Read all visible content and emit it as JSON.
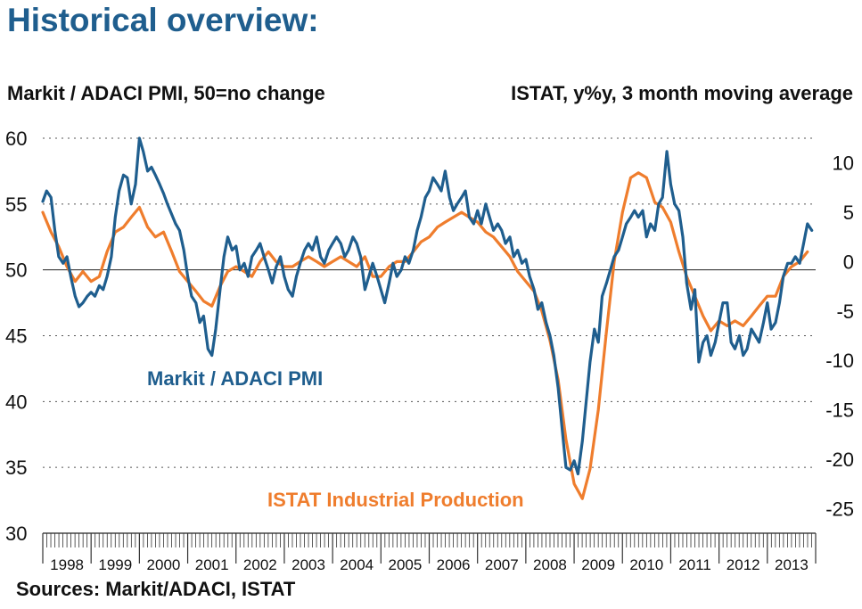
{
  "header": {
    "title": "Historical overview:",
    "left_axis_title": "Markit / ADACI PMI, 50=no change",
    "right_axis_title": "ISTAT, y%y, 3 month moving average",
    "source": "Sources: Markit/ADACI, ISTAT"
  },
  "colors": {
    "pmi": "#1f5e8e",
    "istat": "#ef7d2d"
  },
  "chart_data": {
    "type": "line",
    "title": "Historical overview:",
    "y_left": {
      "label": "Markit / ADACI PMI, 50=no change",
      "lim": [
        30,
        60
      ],
      "ticks": [
        "30",
        "35",
        "40",
        "45",
        "50",
        "55",
        "60"
      ],
      "ticks_num": [
        30,
        35,
        40,
        45,
        50,
        55,
        60
      ]
    },
    "y_right": {
      "label": "ISTAT, y%y, 3 month moving average",
      "lim": [
        -27.5,
        12.5
      ],
      "ticks": [
        "-25",
        "-20",
        "-15",
        "-10",
        "-5",
        "0",
        "5",
        "10"
      ],
      "ticks_num": [
        -25,
        -20,
        -15,
        -10,
        -5,
        0,
        5,
        10
      ]
    },
    "x_years": [
      "1998",
      "1999",
      "2000",
      "2001",
      "2002",
      "2003",
      "2004",
      "2005",
      "2006",
      "2007",
      "2008",
      "2009",
      "2010",
      "2011",
      "2012",
      "2013"
    ],
    "x_range": [
      1998.0,
      2014.0
    ],
    "grid": "dotted horizontal",
    "series": [
      {
        "name": "Markit / ADACI PMI",
        "axis": "left",
        "x": [
          1998.0,
          1998.08,
          1998.17,
          1998.25,
          1998.33,
          1998.42,
          1998.5,
          1998.58,
          1998.67,
          1998.75,
          1998.83,
          1998.92,
          1999.0,
          1999.08,
          1999.17,
          1999.25,
          1999.33,
          1999.42,
          1999.5,
          1999.58,
          1999.67,
          1999.75,
          1999.83,
          1999.92,
          2000.0,
          2000.08,
          2000.17,
          2000.25,
          2000.33,
          2000.42,
          2000.5,
          2000.58,
          2000.67,
          2000.75,
          2000.83,
          2000.92,
          2001.0,
          2001.08,
          2001.17,
          2001.25,
          2001.33,
          2001.42,
          2001.5,
          2001.58,
          2001.67,
          2001.75,
          2001.83,
          2001.92,
          2002.0,
          2002.08,
          2002.17,
          2002.25,
          2002.33,
          2002.42,
          2002.5,
          2002.58,
          2002.67,
          2002.75,
          2002.83,
          2002.92,
          2003.0,
          2003.08,
          2003.17,
          2003.25,
          2003.33,
          2003.42,
          2003.5,
          2003.58,
          2003.67,
          2003.75,
          2003.83,
          2003.92,
          2004.0,
          2004.08,
          2004.17,
          2004.25,
          2004.33,
          2004.42,
          2004.5,
          2004.58,
          2004.67,
          2004.75,
          2004.83,
          2004.92,
          2005.0,
          2005.08,
          2005.17,
          2005.25,
          2005.33,
          2005.42,
          2005.5,
          2005.58,
          2005.67,
          2005.75,
          2005.83,
          2005.92,
          2006.0,
          2006.08,
          2006.17,
          2006.25,
          2006.33,
          2006.42,
          2006.5,
          2006.58,
          2006.67,
          2006.75,
          2006.83,
          2006.92,
          2007.0,
          2007.08,
          2007.17,
          2007.25,
          2007.33,
          2007.42,
          2007.5,
          2007.58,
          2007.67,
          2007.75,
          2007.83,
          2007.92,
          2008.0,
          2008.08,
          2008.17,
          2008.25,
          2008.33,
          2008.42,
          2008.5,
          2008.58,
          2008.67,
          2008.75,
          2008.83,
          2008.92,
          2009.0,
          2009.08,
          2009.17,
          2009.25,
          2009.33,
          2009.42,
          2009.5,
          2009.58,
          2009.67,
          2009.75,
          2009.83,
          2009.92,
          2010.0,
          2010.08,
          2010.17,
          2010.25,
          2010.33,
          2010.42,
          2010.5,
          2010.58,
          2010.67,
          2010.75,
          2010.83,
          2010.92,
          2011.0,
          2011.08,
          2011.17,
          2011.25,
          2011.33,
          2011.42,
          2011.5,
          2011.58,
          2011.67,
          2011.75,
          2011.83,
          2011.92,
          2012.0,
          2012.08,
          2012.17,
          2012.25,
          2012.33,
          2012.42,
          2012.5,
          2012.58,
          2012.67,
          2012.75,
          2012.83,
          2012.92,
          2013.0,
          2013.08,
          2013.17,
          2013.25,
          2013.33,
          2013.42,
          2013.5,
          2013.58,
          2013.67,
          2013.75,
          2013.83,
          2013.92
        ],
        "values": [
          55.2,
          56.0,
          55.5,
          53.0,
          51.0,
          50.5,
          51.0,
          49.5,
          48.0,
          47.2,
          47.5,
          48.0,
          48.3,
          48.0,
          48.8,
          48.5,
          49.5,
          51.0,
          54.0,
          56.0,
          57.2,
          57.0,
          55.0,
          56.5,
          60.0,
          59.0,
          57.5,
          57.8,
          57.2,
          56.5,
          55.8,
          55.0,
          54.2,
          53.5,
          53.0,
          51.5,
          49.5,
          48.0,
          47.5,
          46.0,
          46.5,
          44.0,
          43.5,
          45.5,
          48.5,
          51.0,
          52.5,
          51.5,
          51.8,
          50.0,
          50.5,
          49.5,
          51.0,
          51.5,
          52.0,
          51.0,
          50.0,
          49.0,
          50.2,
          51.0,
          49.5,
          48.5,
          48.0,
          49.5,
          50.5,
          51.5,
          52.0,
          51.5,
          52.5,
          51.0,
          50.5,
          51.5,
          52.0,
          52.5,
          52.0,
          51.0,
          51.5,
          52.5,
          52.0,
          51.0,
          48.5,
          49.5,
          50.5,
          49.5,
          48.5,
          47.5,
          49.0,
          50.5,
          49.5,
          50.0,
          51.0,
          50.5,
          51.5,
          53.0,
          54.0,
          55.5,
          56.0,
          57.0,
          56.5,
          56.0,
          57.5,
          55.5,
          54.5,
          55.0,
          55.5,
          56.0,
          54.0,
          53.5,
          54.5,
          53.5,
          55.0,
          54.0,
          53.0,
          53.5,
          53.0,
          52.0,
          52.5,
          51.0,
          51.5,
          50.5,
          50.8,
          49.5,
          48.5,
          47.0,
          47.5,
          46.0,
          45.0,
          43.5,
          41.0,
          38.0,
          35.0,
          34.8,
          35.5,
          34.5,
          37.0,
          40.0,
          43.0,
          45.5,
          44.5,
          48.0,
          49.0,
          50.0,
          51.0,
          51.5,
          52.5,
          53.5,
          54.0,
          54.5,
          54.0,
          54.5,
          52.5,
          53.5,
          53.0,
          55.0,
          55.5,
          59.0,
          56.5,
          55.0,
          54.5,
          52.5,
          49.0,
          47.0,
          48.5,
          43.0,
          44.5,
          45.0,
          43.5,
          44.5,
          46.0,
          47.5,
          47.5,
          44.5,
          44.0,
          45.0,
          43.5,
          44.0,
          45.5,
          45.0,
          44.5,
          46.0,
          47.5,
          45.5,
          46.0,
          47.5,
          49.5,
          50.5,
          50.5,
          51.0,
          50.5,
          52.0,
          53.5,
          53.0
        ]
      },
      {
        "name": "ISTAT Industrial Production",
        "axis": "right",
        "x": [
          1998.0,
          1998.17,
          1998.33,
          1998.5,
          1998.67,
          1998.83,
          1999.0,
          1999.17,
          1999.33,
          1999.5,
          1999.67,
          1999.83,
          2000.0,
          2000.17,
          2000.33,
          2000.5,
          2000.67,
          2000.83,
          2001.0,
          2001.17,
          2001.33,
          2001.5,
          2001.67,
          2001.83,
          2002.0,
          2002.17,
          2002.33,
          2002.5,
          2002.67,
          2002.83,
          2003.0,
          2003.17,
          2003.33,
          2003.5,
          2003.67,
          2003.83,
          2004.0,
          2004.17,
          2004.33,
          2004.5,
          2004.67,
          2004.83,
          2005.0,
          2005.17,
          2005.33,
          2005.5,
          2005.67,
          2005.83,
          2006.0,
          2006.17,
          2006.33,
          2006.5,
          2006.67,
          2006.83,
          2007.0,
          2007.17,
          2007.33,
          2007.5,
          2007.67,
          2007.83,
          2008.0,
          2008.17,
          2008.33,
          2008.5,
          2008.67,
          2008.83,
          2009.0,
          2009.17,
          2009.33,
          2009.5,
          2009.67,
          2009.83,
          2010.0,
          2010.17,
          2010.33,
          2010.5,
          2010.67,
          2010.83,
          2011.0,
          2011.17,
          2011.33,
          2011.5,
          2011.67,
          2011.83,
          2012.0,
          2012.17,
          2012.33,
          2012.5,
          2012.67,
          2012.83,
          2013.0,
          2013.17,
          2013.33,
          2013.5,
          2013.67,
          2013.83
        ],
        "values": [
          5.0,
          3.0,
          1.5,
          -0.5,
          -2.0,
          -1.0,
          -2.0,
          -1.5,
          1.0,
          3.0,
          3.5,
          4.5,
          5.5,
          3.5,
          2.5,
          3.0,
          1.0,
          -1.0,
          -2.0,
          -3.0,
          -4.0,
          -4.5,
          -2.5,
          -1.0,
          -0.5,
          -1.0,
          -1.5,
          0.0,
          1.0,
          0.0,
          -0.5,
          -0.5,
          0.0,
          0.5,
          0.0,
          -0.5,
          0.0,
          0.5,
          0.0,
          -0.5,
          0.5,
          -1.5,
          -1.5,
          -0.5,
          0.0,
          0.0,
          1.0,
          2.0,
          2.5,
          3.5,
          4.0,
          4.5,
          5.0,
          4.5,
          4.0,
          3.0,
          2.5,
          1.5,
          0.5,
          -1.0,
          -2.0,
          -3.0,
          -5.0,
          -8.0,
          -12.0,
          -18.0,
          -22.5,
          -24.0,
          -21.0,
          -15.0,
          -7.0,
          0.0,
          5.0,
          8.5,
          9.0,
          8.5,
          6.0,
          5.5,
          4.0,
          1.0,
          -1.5,
          -3.5,
          -5.5,
          -7.0,
          -6.0,
          -6.5,
          -6.0,
          -6.5,
          -5.5,
          -4.5,
          -3.5,
          -3.5,
          -1.5,
          -0.5,
          0.0,
          1.0
        ]
      }
    ],
    "annotations": [
      "Markit / ADACI PMI",
      "ISTAT Industrial Production"
    ]
  }
}
